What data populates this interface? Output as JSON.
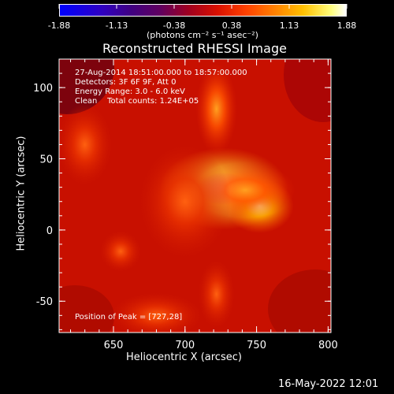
{
  "colorbar": {
    "ticks": [
      "-1.88",
      "-1.13",
      "-0.38",
      "0.38",
      "1.13",
      "1.88"
    ],
    "units": "(photons cm⁻² s⁻¹ asec⁻²)",
    "min": -1.88,
    "max": 1.88,
    "colormap": "RHESSI red-temperature (black-blue-purple-red-orange-yellow-white)"
  },
  "chart_data": {
    "type": "heatmap",
    "title": "Reconstructed RHESSI Image",
    "xlabel": "Heliocentric X (arcsec)",
    "ylabel": "Heliocentric Y (arcsec)",
    "xlim": [
      612,
      802
    ],
    "ylim": [
      -72,
      120
    ],
    "xticks": [
      "650",
      "700",
      "750",
      "800"
    ],
    "yticks": [
      "100",
      "50",
      "0",
      "-50"
    ],
    "annotations": [
      "27-Aug-2014 18:51:00.000 to 18:57:00.000",
      "Detectors: 3F 6F 9F, Att 0",
      "Energy Range: 3.0 - 6.0 keV",
      "Clean    Total counts: 1.24E+05"
    ],
    "peak_label": "Position of Peak = [727,28]",
    "sources": [
      {
        "x": 727,
        "y": 29,
        "rx": 28,
        "ry": 18,
        "peak": 1.0
      },
      {
        "x": 752,
        "y": 17,
        "rx": 15,
        "ry": 12,
        "peak": 0.82
      },
      {
        "x": 742,
        "y": 28,
        "rx": 22,
        "ry": 12,
        "peak": 0.6
      },
      {
        "x": 722,
        "y": 85,
        "rx": 9,
        "ry": 20,
        "peak": 0.42
      },
      {
        "x": 722,
        "y": -45,
        "rx": 8,
        "ry": 15,
        "peak": 0.32
      },
      {
        "x": 655,
        "y": -15,
        "rx": 9,
        "ry": 9,
        "peak": 0.3
      },
      {
        "x": 700,
        "y": 20,
        "rx": 20,
        "ry": 25,
        "peak": 0.35
      },
      {
        "x": 630,
        "y": 60,
        "rx": 12,
        "ry": 18,
        "peak": 0.2
      },
      {
        "x": 680,
        "y": -60,
        "rx": 20,
        "ry": 10,
        "peak": 0.22
      }
    ]
  },
  "footer": {
    "timestamp": "16-May-2022 12:01"
  }
}
